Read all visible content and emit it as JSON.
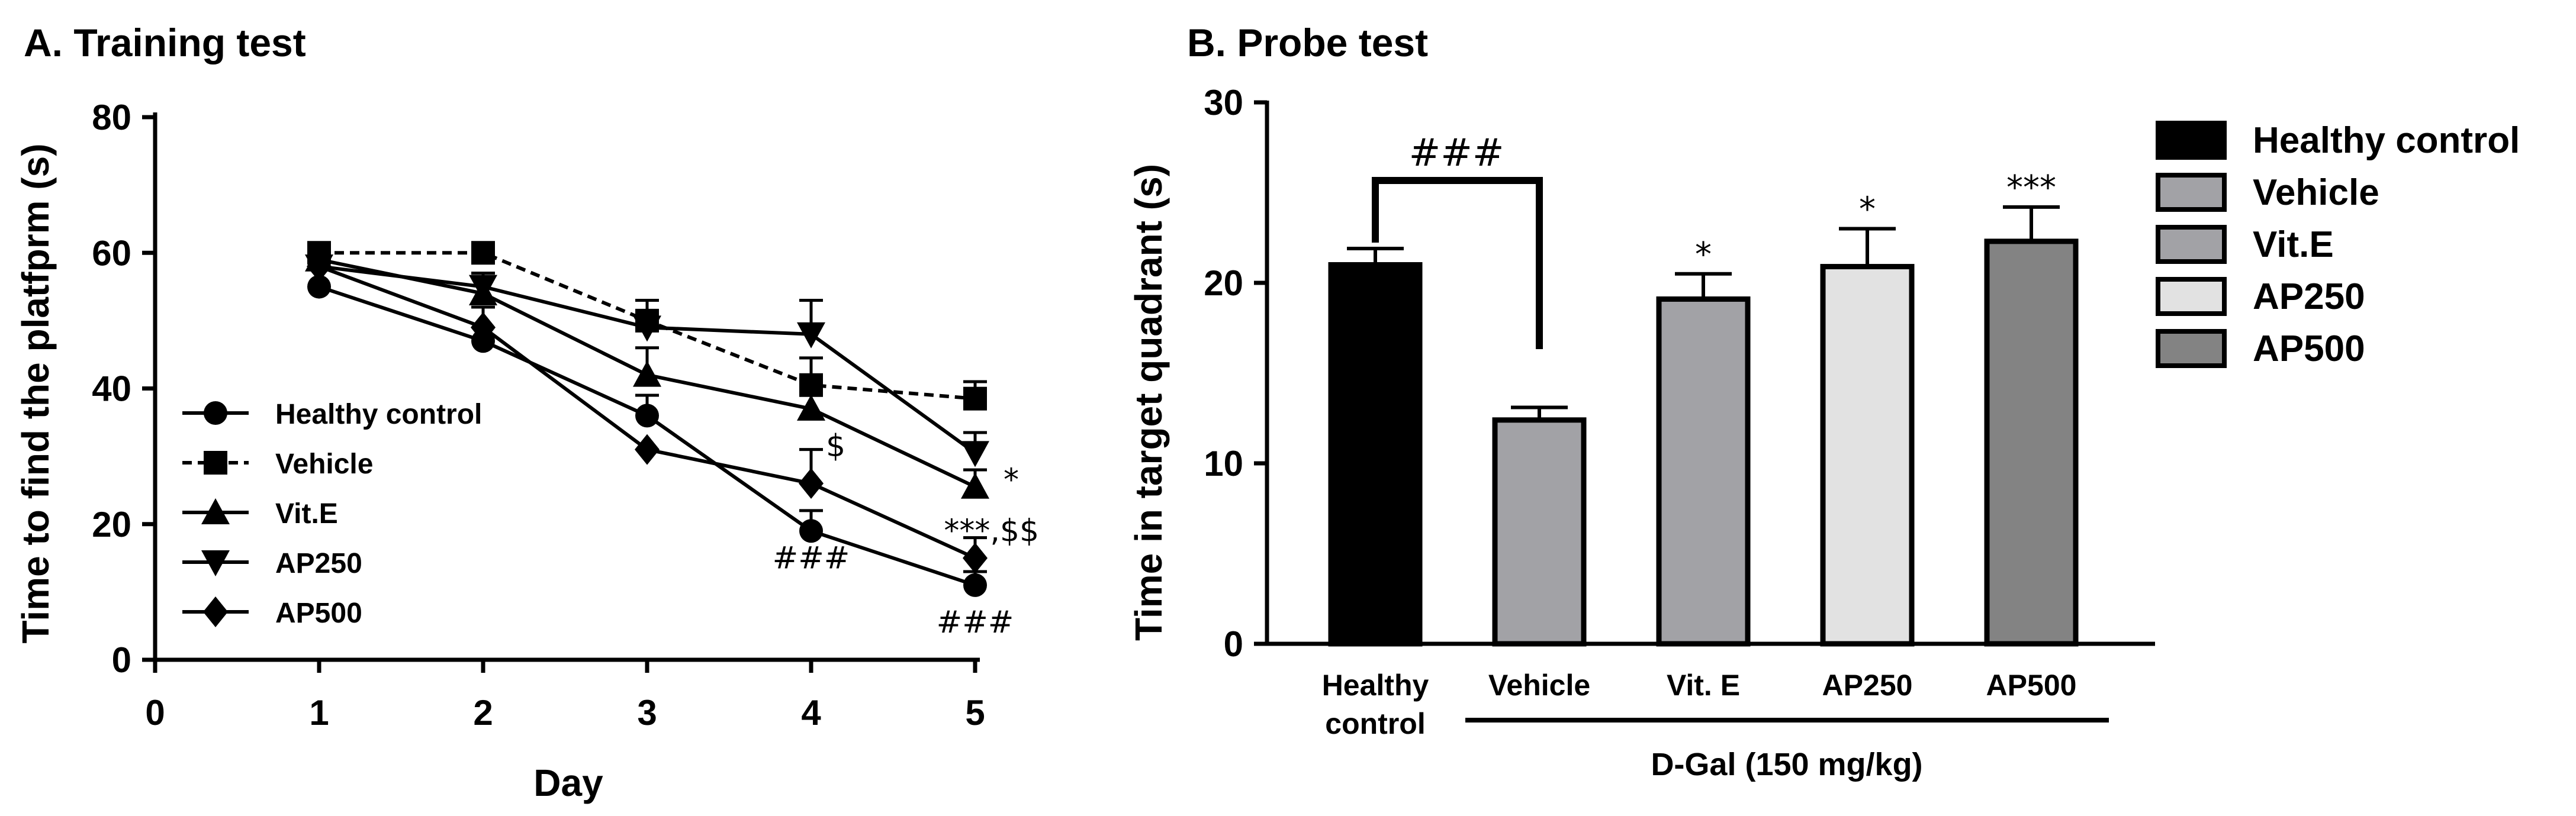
{
  "chart_data": [
    {
      "type": "line",
      "title": "A. Training test",
      "xlabel": "Day",
      "ylabel": "Time to find the platfprm (s)",
      "xlim": [
        0,
        5
      ],
      "ylim": [
        0,
        80
      ],
      "xticks": [
        "0",
        "1",
        "2",
        "3",
        "4",
        "5"
      ],
      "yticks": [
        "0",
        "20",
        "40",
        "60",
        "80"
      ],
      "x": [
        1,
        2,
        3,
        4,
        5
      ],
      "series": [
        {
          "name": "Healthy control",
          "marker": "circle",
          "dashed": false,
          "values": [
            55,
            47,
            36,
            19,
            11
          ],
          "errors": [
            0,
            0,
            3,
            3,
            2
          ]
        },
        {
          "name": "Vehicle",
          "marker": "square",
          "dashed": true,
          "values": [
            60,
            60,
            50,
            40.5,
            38.5
          ],
          "errors": [
            0,
            0,
            3,
            4,
            2.5
          ]
        },
        {
          "name": "Vit.E",
          "marker": "triangle-up",
          "dashed": false,
          "values": [
            59,
            54,
            42,
            37,
            25.5
          ],
          "errors": [
            0,
            3,
            4,
            4,
            2.5
          ]
        },
        {
          "name": "AP250",
          "marker": "triangle-down",
          "dashed": false,
          "values": [
            58,
            55,
            49,
            48,
            30.5
          ],
          "errors": [
            0,
            2,
            4,
            5,
            3
          ]
        },
        {
          "name": "AP500",
          "marker": "diamond",
          "dashed": false,
          "values": [
            58,
            49,
            31,
            26,
            15
          ],
          "errors": [
            0,
            3,
            0,
            5,
            3
          ]
        }
      ],
      "annotations": [
        {
          "text": "###",
          "x": 4,
          "y": 13.5
        },
        {
          "text": "$",
          "x": 4.15,
          "y": 30
        },
        {
          "text": "*",
          "x": 5.22,
          "y": 25
        },
        {
          "text": "***,$$",
          "x": 5.1,
          "y": 17.5
        },
        {
          "text": "###",
          "x": 5,
          "y": 4
        }
      ],
      "legend_position": "bottom-left"
    },
    {
      "type": "bar",
      "title": "B. Probe test",
      "ylabel": "Time in target quadrant (s)",
      "ylim": [
        0,
        30
      ],
      "yticks": [
        "0",
        "10",
        "20",
        "30"
      ],
      "categories": [
        "Healthy control",
        "Vehicle",
        "Vit. E",
        "AP250",
        "AP500"
      ],
      "category_lines": [
        [
          "Healthy",
          "control"
        ],
        [
          "Vehicle"
        ],
        [
          "Vit. E"
        ],
        [
          "AP250"
        ],
        [
          "AP500"
        ]
      ],
      "values": [
        21,
        12.4,
        19.1,
        20.9,
        22.3
      ],
      "errors": [
        0.9,
        0.7,
        1.4,
        2.1,
        1.9
      ],
      "colors": [
        "#000000",
        "#a2a2a6",
        "#a2a2a6",
        "#e2e2e2",
        "#838383"
      ],
      "significance": [
        "",
        "",
        "*",
        "*",
        "***"
      ],
      "comparison_label": "###",
      "group_label": "D-Gal (150 mg/kg)",
      "legend": [
        "Healthy control",
        "Vehicle",
        "Vit.E",
        "AP250",
        "AP500"
      ]
    }
  ]
}
